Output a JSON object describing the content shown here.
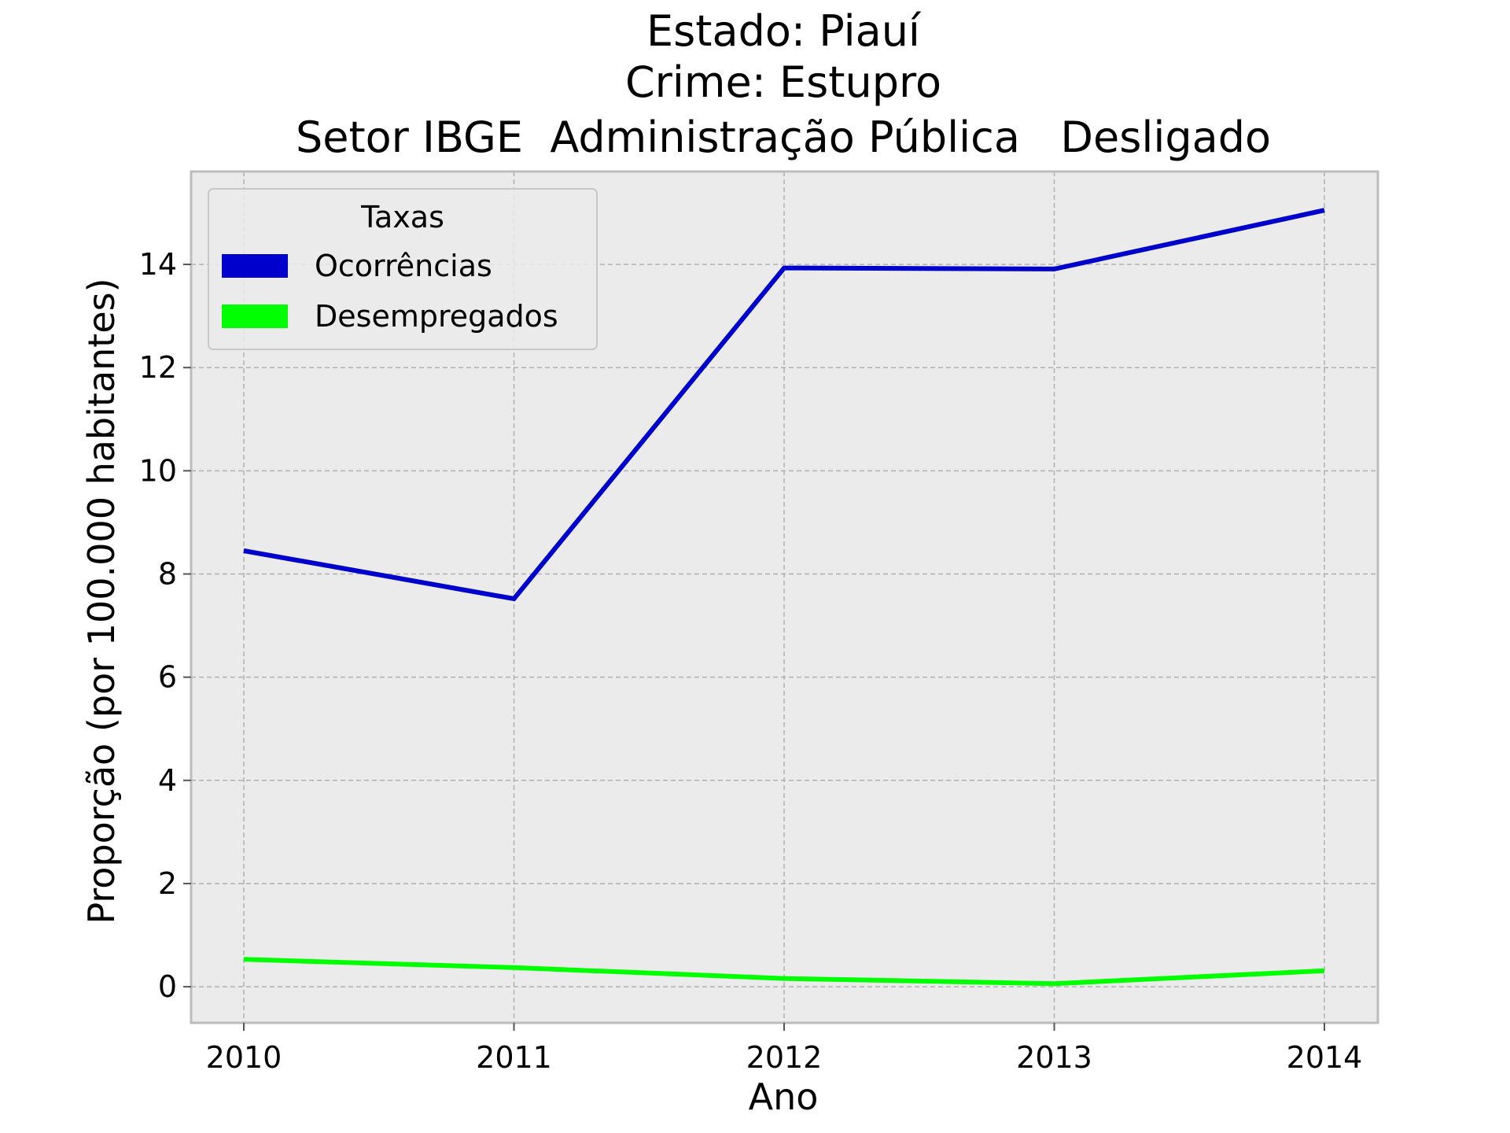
{
  "chart_data": {
    "type": "line",
    "title_lines": [
      "Estado: Piauí",
      "Crime: Estupro",
      "Setor IBGE  Administração Pública   Desligado"
    ],
    "xlabel": "Ano",
    "ylabel": "Proporção (por 100.000 habitantes)",
    "x": [
      "2010",
      "2011",
      "2012",
      "2013",
      "2014"
    ],
    "x_ticks": [
      "2010",
      "2011",
      "2012",
      "2013",
      "2014"
    ],
    "y_ticks": [
      "0",
      "2",
      "4",
      "6",
      "8",
      "10",
      "12",
      "14"
    ],
    "ylim": [
      -0.7,
      15.8
    ],
    "grid": true,
    "legend": {
      "title": "Taxas",
      "placement": "upper-left"
    },
    "series": [
      {
        "name": "Ocorrências",
        "color": "#0000cc",
        "values": [
          8.45,
          7.52,
          13.93,
          13.91,
          15.05
        ]
      },
      {
        "name": "Desempregados",
        "color": "#00ff00",
        "values": [
          0.53,
          0.37,
          0.16,
          0.06,
          0.31
        ]
      }
    ],
    "colors": {
      "plot_background": "#ebebeb",
      "grid": "#b0b0b0",
      "frame": "#bcbcbc"
    }
  }
}
